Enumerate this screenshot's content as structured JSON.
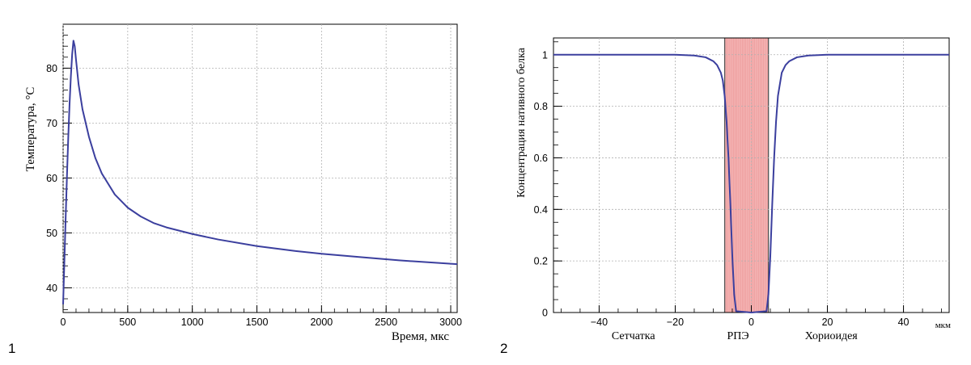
{
  "panels": {
    "left_label": "1",
    "right_label": "2"
  },
  "colors": {
    "curve": "#3b3f9e",
    "band_fill": "#f4b4b4",
    "band_line": "#e07070",
    "grid": "#b0b0b0",
    "axis": "#000000"
  },
  "chart_data": [
    {
      "type": "line",
      "title": "",
      "xlabel": "Время, мкс",
      "ylabel": "Температура, °C",
      "xlim": [
        0,
        3050
      ],
      "ylim": [
        35.5,
        88
      ],
      "xticks": [
        0,
        500,
        1000,
        1500,
        2000,
        2500,
        3000
      ],
      "xtick_labels": [
        "0",
        "500",
        "1000",
        "1500",
        "2000",
        "2500",
        "3000"
      ],
      "yticks": [
        40,
        50,
        60,
        70,
        80
      ],
      "ytick_labels": [
        "40",
        "50",
        "60",
        "70",
        "80"
      ],
      "grid": true,
      "series": [
        {
          "x": [
            0,
            10,
            20,
            30,
            40,
            50,
            60,
            70,
            80,
            90,
            100,
            120,
            150,
            200,
            250,
            300,
            400,
            500,
            600,
            700,
            800,
            1000,
            1200,
            1500,
            1800,
            2000,
            2300,
            2600,
            3050
          ],
          "y": [
            37,
            45,
            53,
            60.5,
            67.5,
            73.5,
            78.5,
            82.5,
            85,
            84,
            81.5,
            77,
            72.5,
            67.5,
            63.6,
            60.8,
            57,
            54.6,
            53,
            51.8,
            51,
            49.8,
            48.8,
            47.6,
            46.7,
            46.2,
            45.6,
            45.0,
            44.3
          ]
        }
      ]
    },
    {
      "type": "line",
      "title": "",
      "xlabel": "мкм",
      "ylabel": "Концентрация нативного белка",
      "xlim": [
        -52,
        52
      ],
      "ylim": [
        0,
        1.065
      ],
      "xticks": [
        -40,
        -20,
        0,
        20,
        40
      ],
      "xtick_labels": [
        "−40",
        "−20",
        "0",
        "20",
        "40"
      ],
      "yticks": [
        0,
        0.2,
        0.4,
        0.6,
        0.8,
        1
      ],
      "ytick_labels": [
        "0",
        "0.2",
        "0.4",
        "0.6",
        "0.8",
        "1"
      ],
      "grid": true,
      "regions": [
        {
          "label": "Сетчатка",
          "x": -31
        },
        {
          "label": "РПЭ",
          "x": -3.5
        },
        {
          "label": "Хориоидея",
          "x": 21
        }
      ],
      "band": {
        "x": [
          -7,
          4.5
        ]
      },
      "series": [
        {
          "x": [
            -52,
            -20,
            -15,
            -12,
            -10,
            -9,
            -8,
            -7.5,
            -7,
            -6.5,
            -6,
            -5.5,
            -5,
            -4.5,
            -4,
            0,
            4,
            4.5,
            5,
            5.5,
            6,
            6.5,
            7,
            8,
            9,
            10,
            12,
            15,
            20,
            52
          ],
          "y": [
            1,
            1,
            0.997,
            0.99,
            0.975,
            0.96,
            0.93,
            0.9,
            0.84,
            0.74,
            0.6,
            0.42,
            0.22,
            0.07,
            0.005,
            0,
            0.005,
            0.07,
            0.22,
            0.42,
            0.6,
            0.74,
            0.84,
            0.93,
            0.96,
            0.975,
            0.99,
            0.997,
            1,
            1
          ]
        }
      ]
    }
  ]
}
